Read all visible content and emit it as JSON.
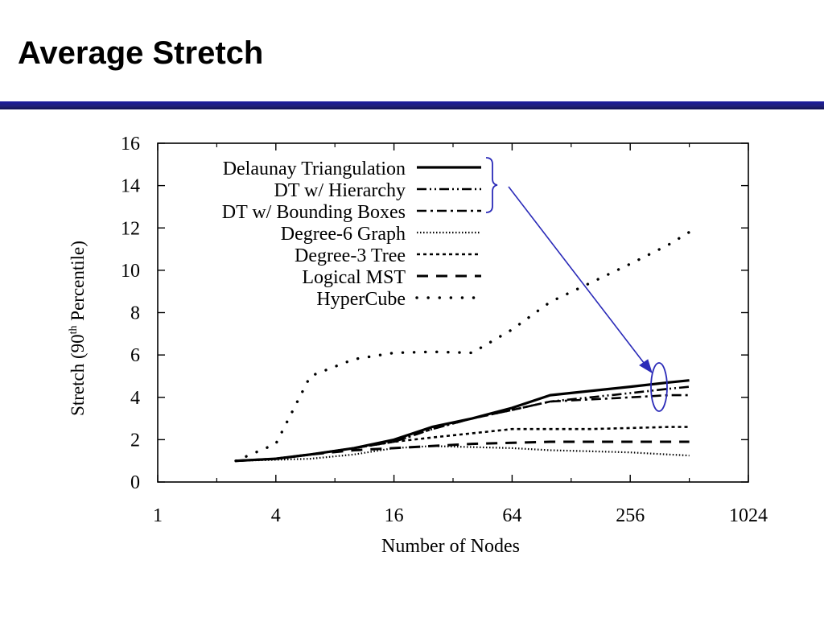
{
  "slide": {
    "title": "Average Stretch"
  },
  "colors": {
    "title_bar": "#20208a",
    "annotation": "#2a2ab8",
    "series": "#000000"
  },
  "chart_data": {
    "type": "line",
    "title": "",
    "xlabel": "Number of Nodes",
    "ylabel": "Stretch (90",
    "ylabel_superscript": "th",
    "ylabel_suffix": " Percentile)",
    "xscale": "log2",
    "xlim": [
      1,
      1024
    ],
    "ylim": [
      0,
      16
    ],
    "x_ticks": [
      1,
      4,
      16,
      64,
      256,
      1024
    ],
    "x_tick_labels": [
      "1",
      "4",
      "16",
      "64",
      "256",
      "1024"
    ],
    "y_ticks": [
      0,
      2,
      4,
      6,
      8,
      10,
      12,
      14,
      16
    ],
    "y_tick_labels": [
      "0",
      "2",
      "4",
      "6",
      "8",
      "10",
      "12",
      "14",
      "16"
    ],
    "grid": false,
    "legend_position": "top-left",
    "x": [
      2.5,
      4,
      6,
      10,
      16,
      25,
      40,
      64,
      100,
      160,
      256,
      400,
      512
    ],
    "series": [
      {
        "name": "Delaunay Triangulation",
        "style": "solid",
        "values": [
          1.0,
          1.1,
          1.3,
          1.6,
          2.0,
          2.6,
          3.0,
          3.5,
          4.1,
          4.3,
          4.5,
          4.7,
          4.8
        ]
      },
      {
        "name": "DT w/ Hierarchy",
        "style": "dash-dot-dot",
        "values": [
          1.0,
          1.1,
          1.3,
          1.6,
          1.9,
          2.5,
          3.0,
          3.4,
          3.8,
          4.0,
          4.2,
          4.4,
          4.5
        ]
      },
      {
        "name": "DT w/ Bounding Boxes",
        "style": "dash-dot",
        "values": [
          1.0,
          1.1,
          1.3,
          1.6,
          1.9,
          2.5,
          3.0,
          3.4,
          3.8,
          3.9,
          4.0,
          4.1,
          4.1
        ]
      },
      {
        "name": "Degree-6 Graph",
        "style": "fine-dotted",
        "values": [
          1.0,
          1.05,
          1.1,
          1.3,
          1.6,
          1.7,
          1.65,
          1.6,
          1.5,
          1.45,
          1.4,
          1.3,
          1.25
        ]
      },
      {
        "name": "Degree-3 Tree",
        "style": "short-dash",
        "values": [
          1.0,
          1.1,
          1.3,
          1.6,
          1.9,
          2.1,
          2.3,
          2.5,
          2.5,
          2.5,
          2.55,
          2.6,
          2.6
        ]
      },
      {
        "name": "Logical MST",
        "style": "long-dash",
        "values": [
          1.0,
          1.1,
          1.3,
          1.5,
          1.6,
          1.7,
          1.8,
          1.85,
          1.9,
          1.9,
          1.9,
          1.9,
          1.9
        ]
      },
      {
        "name": "HyperCube",
        "style": "sparse-dotted",
        "values": [
          1.0,
          1.8,
          5.0,
          5.8,
          6.1,
          6.15,
          6.1,
          7.2,
          8.5,
          9.4,
          10.3,
          11.2,
          11.8
        ]
      }
    ]
  }
}
